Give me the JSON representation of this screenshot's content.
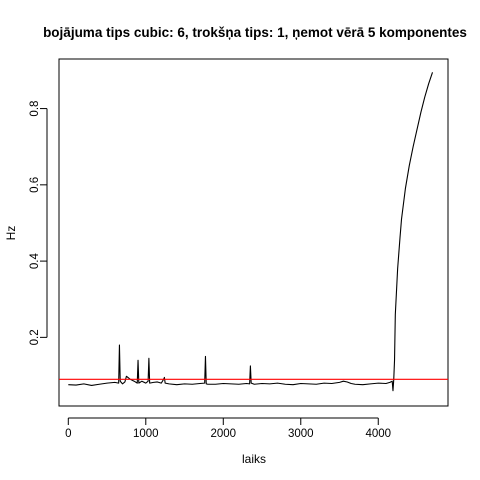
{
  "chart_data": {
    "type": "line",
    "title": "bojājuma tips cubic: 6, trokšņa tips: 1, ņemot vērā 5 komponentes",
    "xlabel": "laiks",
    "ylabel": "Hz",
    "xlim": [
      -120,
      4900
    ],
    "ylim": [
      0.02,
      0.93
    ],
    "xticks": [
      0,
      1000,
      2000,
      3000,
      4000
    ],
    "xtick_labels": [
      "0",
      "1000",
      "2000",
      "3000",
      "4000"
    ],
    "yticks": [
      0.2,
      0.4,
      0.6,
      0.8
    ],
    "ytick_labels": [
      "0.2",
      "0.4",
      "0.6",
      "0.8"
    ],
    "grid": false,
    "threshold": {
      "value": 0.09,
      "color": "#ff0000"
    },
    "series": [
      {
        "color": "#000000",
        "x": [
          0,
          100,
          200,
          300,
          400,
          500,
          600,
          650,
          660,
          670,
          700,
          730,
          750,
          800,
          850,
          890,
          900,
          910,
          950,
          1000,
          1030,
          1040,
          1050,
          1100,
          1150,
          1200,
          1230,
          1240,
          1250,
          1300,
          1400,
          1500,
          1600,
          1700,
          1760,
          1770,
          1780,
          1800,
          1900,
          2000,
          2100,
          2200,
          2300,
          2340,
          2350,
          2360,
          2400,
          2500,
          2600,
          2700,
          2800,
          2900,
          3000,
          3100,
          3200,
          3300,
          3400,
          3500,
          3550,
          3600,
          3650,
          3700,
          3800,
          3900,
          4000,
          4100,
          4150,
          4180,
          4190,
          4200,
          4210,
          4220,
          4250,
          4280,
          4300,
          4350,
          4400,
          4450,
          4500,
          4550,
          4600,
          4650,
          4700
        ],
        "y": [
          0.076,
          0.075,
          0.078,
          0.074,
          0.077,
          0.08,
          0.082,
          0.08,
          0.18,
          0.085,
          0.078,
          0.083,
          0.098,
          0.09,
          0.085,
          0.08,
          0.14,
          0.08,
          0.085,
          0.08,
          0.085,
          0.145,
          0.08,
          0.082,
          0.083,
          0.08,
          0.09,
          0.095,
          0.08,
          0.078,
          0.076,
          0.078,
          0.077,
          0.079,
          0.08,
          0.15,
          0.078,
          0.077,
          0.077,
          0.079,
          0.078,
          0.077,
          0.079,
          0.078,
          0.125,
          0.08,
          0.077,
          0.079,
          0.078,
          0.08,
          0.077,
          0.076,
          0.079,
          0.078,
          0.077,
          0.08,
          0.079,
          0.082,
          0.085,
          0.083,
          0.079,
          0.077,
          0.076,
          0.078,
          0.08,
          0.079,
          0.082,
          0.085,
          0.06,
          0.09,
          0.14,
          0.26,
          0.38,
          0.46,
          0.51,
          0.59,
          0.65,
          0.7,
          0.745,
          0.79,
          0.83,
          0.865,
          0.895
        ]
      }
    ]
  }
}
